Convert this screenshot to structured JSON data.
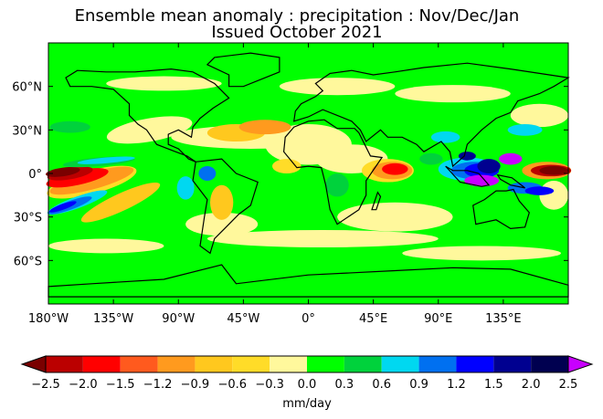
{
  "title": {
    "line1": "Ensemble mean anomaly : precipitation : Nov/Dec/Jan",
    "line2": "Issued October 2021"
  },
  "map": {
    "projection": "equirectangular",
    "lon_range": [
      -180,
      180
    ],
    "lat_range": [
      -90,
      90
    ],
    "lat_ticks": [
      {
        "lat": 60,
        "label": "60°N"
      },
      {
        "lat": 30,
        "label": "30°N"
      },
      {
        "lat": 0,
        "label": "0°"
      },
      {
        "lat": -30,
        "label": "30°S"
      },
      {
        "lat": -60,
        "label": "60°S"
      }
    ],
    "lon_ticks": [
      {
        "lon": -180,
        "label": "180°W"
      },
      {
        "lon": -135,
        "label": "135°W"
      },
      {
        "lon": -90,
        "label": "90°W"
      },
      {
        "lon": -45,
        "label": "45°W"
      },
      {
        "lon": 0,
        "label": "0°"
      },
      {
        "lon": 45,
        "label": "45°E"
      },
      {
        "lon": 90,
        "label": "90°E"
      },
      {
        "lon": 135,
        "label": "135°E"
      }
    ],
    "background_color": "#00ff00"
  },
  "colorbar": {
    "label": "mm/day",
    "ticks": [
      "−2.5",
      "−2.0",
      "−1.5",
      "−1.2",
      "−0.9",
      "−0.6",
      "−0.3",
      "0.0",
      "0.3",
      "0.6",
      "0.9",
      "1.2",
      "1.5",
      "2.0",
      "2.5"
    ],
    "colors": [
      "#bb0000",
      "#ff0000",
      "#ff5a1e",
      "#ff9a1e",
      "#ffc81e",
      "#ffdc28",
      "#fff89c",
      "#00ff00",
      "#00d23c",
      "#00d8f0",
      "#0070f0",
      "#0000ff",
      "#000090",
      "#000050"
    ],
    "under_color": "#7a0000",
    "over_color": "#c800ff"
  }
}
